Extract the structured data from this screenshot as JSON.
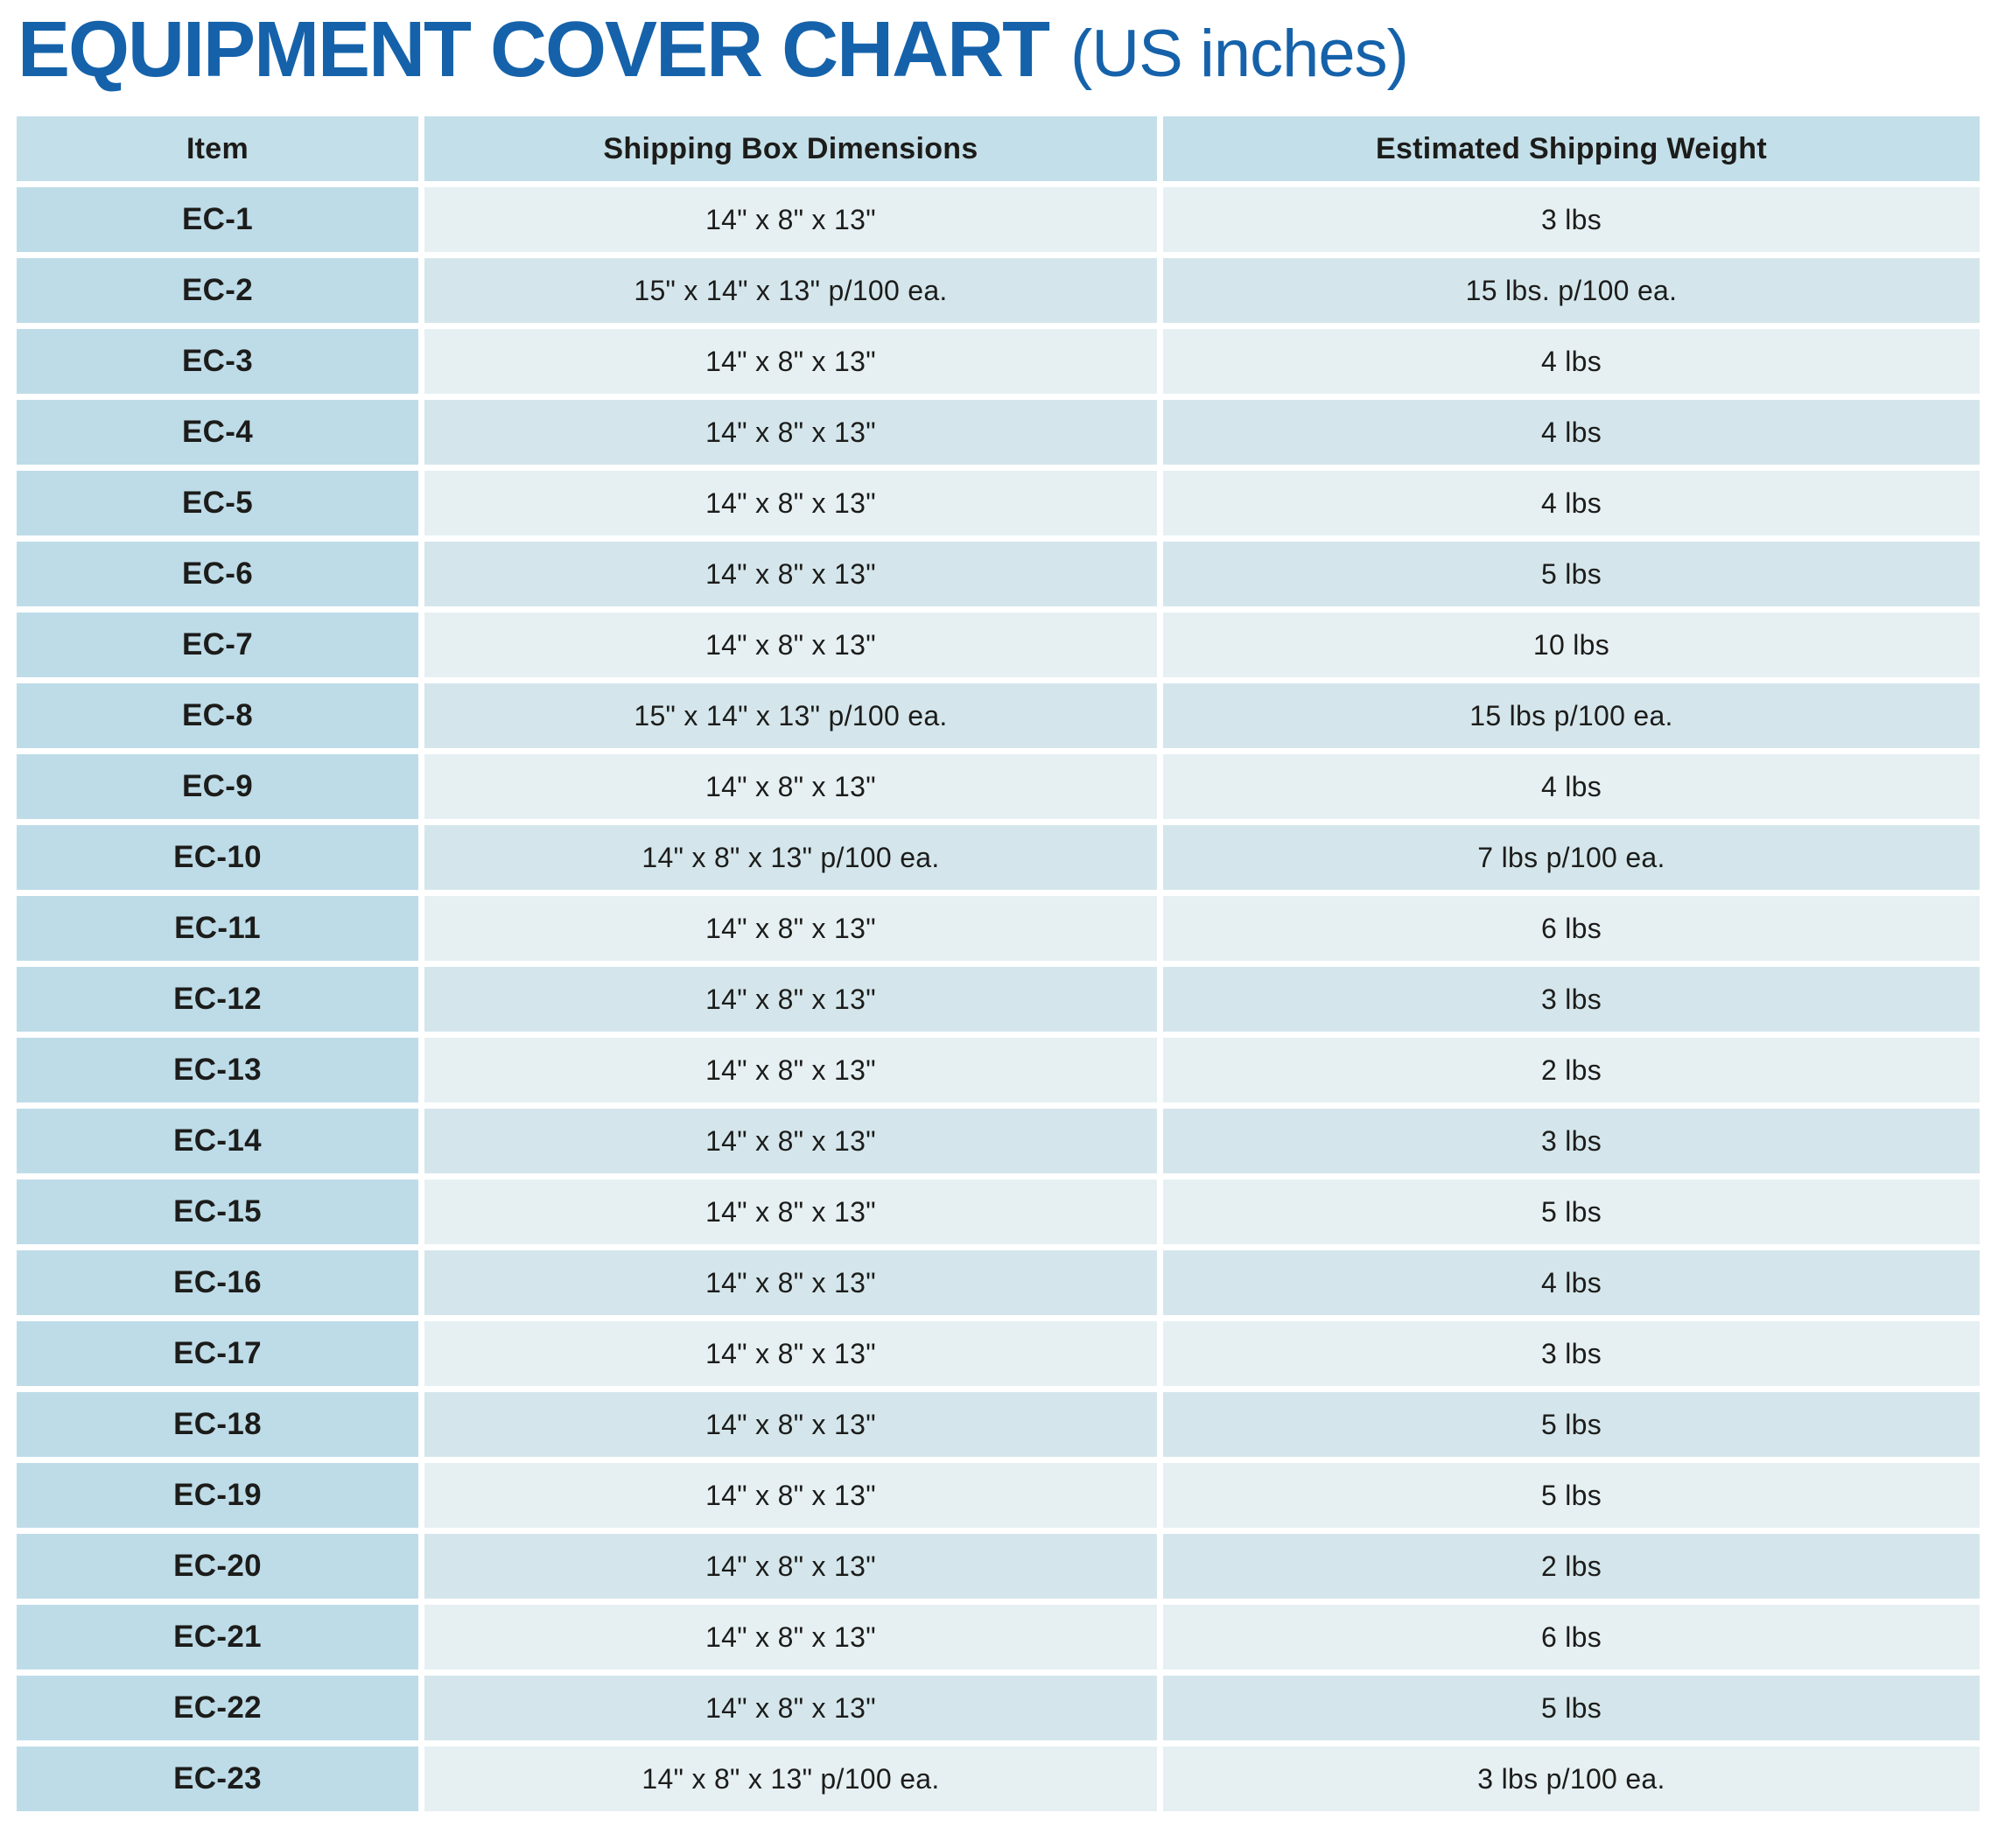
{
  "title": {
    "main": "EQUIPMENT COVER CHART",
    "suffix": "(US inches)"
  },
  "colors": {
    "title_blue": "#1562aa",
    "header_bg": "#c3dfe9",
    "item_bg": "#bedce8",
    "row_light_bg": "#e6f0f3",
    "row_dark_bg": "#d4e6ec",
    "text": "#1c1c1a",
    "gap": "#ffffff"
  },
  "table": {
    "columns": [
      "Item",
      "Shipping Box Dimensions",
      "Estimated Shipping Weight"
    ],
    "rows": [
      {
        "item": "EC-1",
        "dimensions": "14\" x 8\" x 13\"",
        "weight": "3 lbs"
      },
      {
        "item": "EC-2",
        "dimensions": "15\" x 14\" x 13\" p/100 ea.",
        "weight": "15 lbs. p/100 ea."
      },
      {
        "item": "EC-3",
        "dimensions": "14\" x 8\" x 13\"",
        "weight": "4 lbs"
      },
      {
        "item": "EC-4",
        "dimensions": "14\" x 8\" x 13\"",
        "weight": "4 lbs"
      },
      {
        "item": "EC-5",
        "dimensions": "14\" x 8\" x 13\"",
        "weight": "4 lbs"
      },
      {
        "item": "EC-6",
        "dimensions": "14\" x 8\" x 13\"",
        "weight": "5 lbs"
      },
      {
        "item": "EC-7",
        "dimensions": "14\" x 8\" x 13\"",
        "weight": "10 lbs"
      },
      {
        "item": "EC-8",
        "dimensions": "15\" x 14\" x 13\" p/100 ea.",
        "weight": "15 lbs p/100 ea."
      },
      {
        "item": "EC-9",
        "dimensions": "14\" x 8\" x 13\"",
        "weight": "4 lbs"
      },
      {
        "item": "EC-10",
        "dimensions": "14\" x 8\" x 13\" p/100 ea.",
        "weight": "7 lbs p/100 ea."
      },
      {
        "item": "EC-11",
        "dimensions": "14\" x 8\" x 13\"",
        "weight": "6 lbs"
      },
      {
        "item": "EC-12",
        "dimensions": "14\" x 8\" x 13\"",
        "weight": "3 lbs"
      },
      {
        "item": "EC-13",
        "dimensions": "14\" x 8\" x 13\"",
        "weight": "2 lbs"
      },
      {
        "item": "EC-14",
        "dimensions": "14\" x 8\" x 13\"",
        "weight": "3 lbs"
      },
      {
        "item": "EC-15",
        "dimensions": "14\" x 8\" x 13\"",
        "weight": "5 lbs"
      },
      {
        "item": "EC-16",
        "dimensions": "14\" x 8\" x 13\"",
        "weight": "4 lbs"
      },
      {
        "item": "EC-17",
        "dimensions": "14\" x 8\" x 13\"",
        "weight": "3 lbs"
      },
      {
        "item": "EC-18",
        "dimensions": "14\" x 8\" x 13\"",
        "weight": "5 lbs"
      },
      {
        "item": "EC-19",
        "dimensions": "14\" x 8\" x 13\"",
        "weight": "5 lbs"
      },
      {
        "item": "EC-20",
        "dimensions": "14\" x 8\" x 13\"",
        "weight": "2 lbs"
      },
      {
        "item": "EC-21",
        "dimensions": "14\" x 8\" x 13\"",
        "weight": "6 lbs"
      },
      {
        "item": "EC-22",
        "dimensions": "14\" x 8\" x 13\"",
        "weight": "5 lbs"
      },
      {
        "item": "EC-23",
        "dimensions": "14\" x 8\" x 13\" p/100 ea.",
        "weight": "3 lbs p/100 ea."
      }
    ]
  }
}
